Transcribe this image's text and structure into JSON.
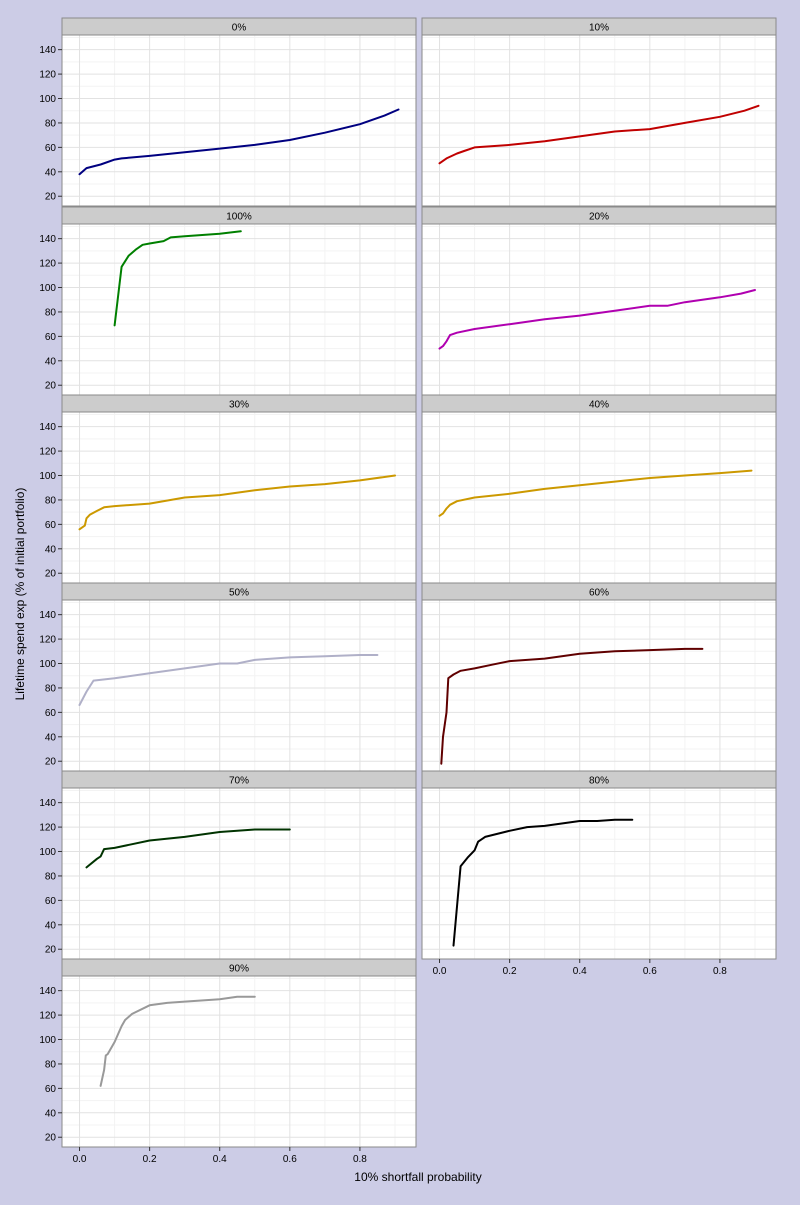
{
  "chart_data": {
    "type": "line",
    "xlabel": "10% shortfall probability",
    "ylabel": "Lifetime spend exp (% of initial portfolio)",
    "xlim": [
      -0.05,
      0.96
    ],
    "ylim": [
      12,
      152
    ],
    "x_ticks": [
      0.0,
      0.2,
      0.4,
      0.6,
      0.8
    ],
    "x_tick_labels": [
      "0.0",
      "0.2",
      "0.4",
      "0.6",
      "0.8"
    ],
    "y_ticks": [
      20,
      40,
      60,
      80,
      100,
      120,
      140
    ],
    "y_tick_labels": [
      "20",
      "40",
      "60",
      "80",
      "100",
      "120",
      "140"
    ],
    "grid": true,
    "facets": [
      {
        "label": "0%",
        "color": "#000080",
        "x": [
          0.0,
          0.02,
          0.06,
          0.1,
          0.12,
          0.2,
          0.3,
          0.4,
          0.5,
          0.6,
          0.7,
          0.8,
          0.87,
          0.91
        ],
        "y": [
          38,
          43,
          46,
          50,
          51,
          53,
          56,
          59,
          62,
          66,
          72,
          79,
          86,
          91
        ]
      },
      {
        "label": "10%",
        "color": "#c00000",
        "x": [
          0.0,
          0.02,
          0.05,
          0.07,
          0.1,
          0.2,
          0.3,
          0.4,
          0.5,
          0.55,
          0.6,
          0.7,
          0.8,
          0.87,
          0.91
        ],
        "y": [
          47,
          51,
          55,
          57,
          60,
          62,
          65,
          69,
          73,
          74,
          75,
          80,
          85,
          90,
          94
        ]
      },
      {
        "label": "100%",
        "color": "#008000",
        "x": [
          0.1,
          0.12,
          0.14,
          0.16,
          0.18,
          0.2,
          0.24,
          0.26,
          0.3,
          0.4,
          0.46
        ],
        "y": [
          69,
          117,
          126,
          131,
          135,
          136,
          138,
          141,
          142,
          144,
          146
        ]
      },
      {
        "label": "20%",
        "color": "#b000b0",
        "x": [
          0.0,
          0.01,
          0.02,
          0.03,
          0.05,
          0.1,
          0.2,
          0.3,
          0.4,
          0.5,
          0.6,
          0.65,
          0.7,
          0.8,
          0.86,
          0.9
        ],
        "y": [
          50,
          52,
          56,
          61,
          63,
          66,
          70,
          74,
          77,
          81,
          85,
          85,
          88,
          92,
          95,
          98
        ]
      },
      {
        "label": "30%",
        "color": "#cc9900",
        "x": [
          0.0,
          0.015,
          0.02,
          0.03,
          0.05,
          0.07,
          0.1,
          0.2,
          0.3,
          0.4,
          0.5,
          0.6,
          0.7,
          0.8,
          0.9
        ],
        "y": [
          56,
          59,
          65,
          68,
          71,
          74,
          75,
          77,
          82,
          84,
          88,
          91,
          93,
          96,
          100
        ]
      },
      {
        "label": "40%",
        "color": "#cc9900",
        "x": [
          0.0,
          0.01,
          0.02,
          0.03,
          0.05,
          0.1,
          0.2,
          0.3,
          0.4,
          0.5,
          0.6,
          0.7,
          0.8,
          0.89
        ],
        "y": [
          67,
          69,
          73,
          76,
          79,
          82,
          85,
          89,
          92,
          95,
          98,
          100,
          102,
          104
        ]
      },
      {
        "label": "50%",
        "color": "#b0b0c8",
        "x": [
          0.0,
          0.02,
          0.04,
          0.1,
          0.2,
          0.3,
          0.4,
          0.45,
          0.5,
          0.6,
          0.7,
          0.8,
          0.85
        ],
        "y": [
          66,
          77,
          86,
          88,
          92,
          96,
          100,
          100,
          103,
          105,
          106,
          107,
          107
        ]
      },
      {
        "label": "60%",
        "color": "#600000",
        "x": [
          0.005,
          0.01,
          0.02,
          0.025,
          0.04,
          0.06,
          0.1,
          0.15,
          0.2,
          0.25,
          0.3,
          0.4,
          0.5,
          0.6,
          0.7,
          0.75
        ],
        "y": [
          18,
          40,
          60,
          88,
          91,
          94,
          96,
          99,
          102,
          103,
          104,
          108,
          110,
          111,
          112,
          112
        ]
      },
      {
        "label": "70%",
        "color": "#003300",
        "x": [
          0.02,
          0.05,
          0.06,
          0.07,
          0.1,
          0.15,
          0.2,
          0.3,
          0.4,
          0.5,
          0.6
        ],
        "y": [
          87,
          94,
          96,
          102,
          103,
          106,
          109,
          112,
          116,
          118,
          118
        ]
      },
      {
        "label": "80%",
        "color": "#000000",
        "x": [
          0.04,
          0.05,
          0.06,
          0.08,
          0.1,
          0.11,
          0.13,
          0.2,
          0.25,
          0.3,
          0.4,
          0.45,
          0.5,
          0.55
        ],
        "y": [
          23,
          55,
          88,
          95,
          101,
          108,
          112,
          117,
          120,
          121,
          125,
          125,
          126,
          126
        ]
      },
      {
        "label": "90%",
        "color": "#999999",
        "x": [
          0.06,
          0.07,
          0.075,
          0.08,
          0.1,
          0.12,
          0.13,
          0.15,
          0.2,
          0.25,
          0.3,
          0.4,
          0.45,
          0.5
        ],
        "y": [
          62,
          75,
          87,
          88,
          98,
          111,
          116,
          121,
          128,
          130,
          131,
          133,
          135,
          135
        ]
      }
    ]
  }
}
